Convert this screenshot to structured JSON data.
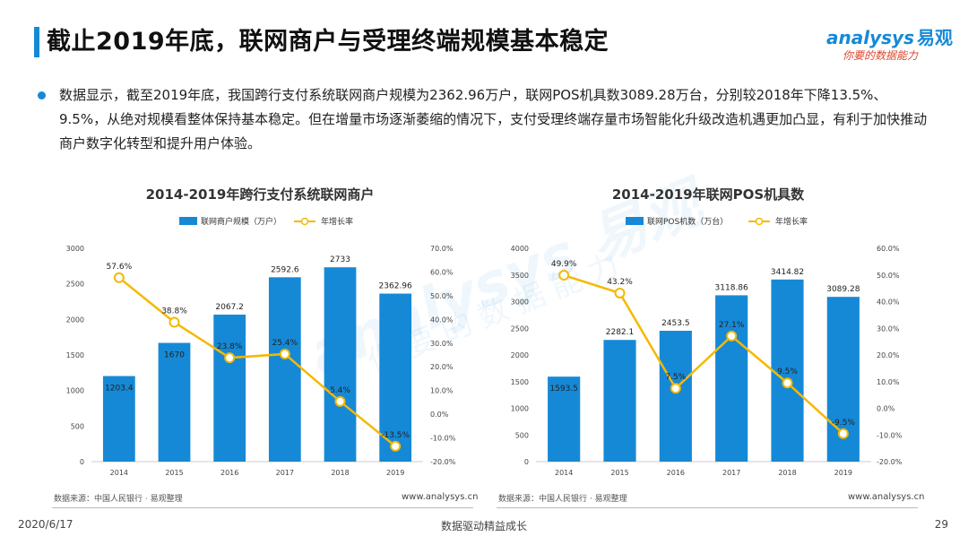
{
  "header": {
    "title": "截止2019年底，联网商户与受理终端规模基本稳定"
  },
  "logo": {
    "brand_en": "analysys",
    "brand_cn": "易观",
    "slogan": "你要的数据能力"
  },
  "watermark": {
    "line1": "analysys 易观",
    "line2": "你要的数据能力"
  },
  "bullet": {
    "text": "数据显示，截至2019年底，我国跨行支付系统联网商户规模为2362.96万户，联网POS机具数3089.28万台，分别较2018年下降13.5%、9.5%，从绝对规模看整体保持基本稳定。但在增量市场逐渐萎缩的情况下，支付受理终端存量市场智能化升级改造机遇更加凸显，有利于加快推动商户数字化转型和提升用户体验。"
  },
  "colors": {
    "bar": "#1689d6",
    "line": "#f5b800",
    "accent": "#1689d6"
  },
  "chart_data": [
    {
      "type": "bar",
      "title": "2014-2019年跨行支付系统联网商户",
      "categories": [
        "2014",
        "2015",
        "2016",
        "2017",
        "2018",
        "2019"
      ],
      "series": [
        {
          "name": "联网商户规模（万户）",
          "type": "bar",
          "axis": "left",
          "values": [
            1203.4,
            1670,
            2067.2,
            2592.6,
            2733,
            2362.96
          ],
          "labels": [
            "1203.4",
            "1670",
            "2067.2",
            "2592.6",
            "2733",
            "2362.96"
          ]
        },
        {
          "name": "年增长率",
          "type": "line",
          "axis": "right",
          "values": [
            57.6,
            38.8,
            23.8,
            25.4,
            5.4,
            -13.5
          ],
          "labels": [
            "57.6%",
            "38.8%",
            "23.8%",
            "25.4%",
            "5.4%",
            "-13.5%"
          ]
        }
      ],
      "ylim_left": [
        0,
        3000
      ],
      "yticks_left": [
        "0",
        "500",
        "1000",
        "1500",
        "2000",
        "2500",
        "3000"
      ],
      "ylim_right": [
        -20,
        70
      ],
      "yticks_right": [
        "-20.0%",
        "-10.0%",
        "0.0%",
        "10.0%",
        "20.0%",
        "30.0%",
        "40.0%",
        "50.0%",
        "60.0%",
        "70.0%"
      ],
      "legend_position": "top",
      "grid": false,
      "source": "数据来源：中国人民银行 · 易观整理",
      "site": "www.analysys.cn"
    },
    {
      "type": "bar",
      "title": "2014-2019年联网POS机具数",
      "categories": [
        "2014",
        "2015",
        "2016",
        "2017",
        "2018",
        "2019"
      ],
      "series": [
        {
          "name": "联网POS机数（万台）",
          "type": "bar",
          "axis": "left",
          "values": [
            1593.5,
            2282.1,
            2453.5,
            3118.86,
            3414.82,
            3089.28
          ],
          "labels": [
            "1593.5",
            "2282.1",
            "2453.5",
            "3118.86",
            "3414.82",
            "3089.28"
          ]
        },
        {
          "name": "年增长率",
          "type": "line",
          "axis": "right",
          "values": [
            49.9,
            43.2,
            7.5,
            27.1,
            9.5,
            -9.5
          ],
          "labels": [
            "49.9%",
            "43.2%",
            "7.5%",
            "27.1%",
            "9.5%",
            "-9.5%"
          ]
        }
      ],
      "ylim_left": [
        0,
        4000
      ],
      "yticks_left": [
        "0",
        "500",
        "1000",
        "1500",
        "2000",
        "2500",
        "3000",
        "3500",
        "4000"
      ],
      "ylim_right": [
        -20,
        60
      ],
      "yticks_right": [
        "-20.0%",
        "-10.0%",
        "0.0%",
        "10.0%",
        "20.0%",
        "30.0%",
        "40.0%",
        "50.0%",
        "60.0%"
      ],
      "legend_position": "top",
      "grid": false,
      "source": "数据来源：中国人民银行 · 易观整理",
      "site": "www.analysys.cn"
    }
  ],
  "footer": {
    "date": "2020/6/17",
    "slogan": "数据驱动精益成长",
    "page": "29"
  }
}
